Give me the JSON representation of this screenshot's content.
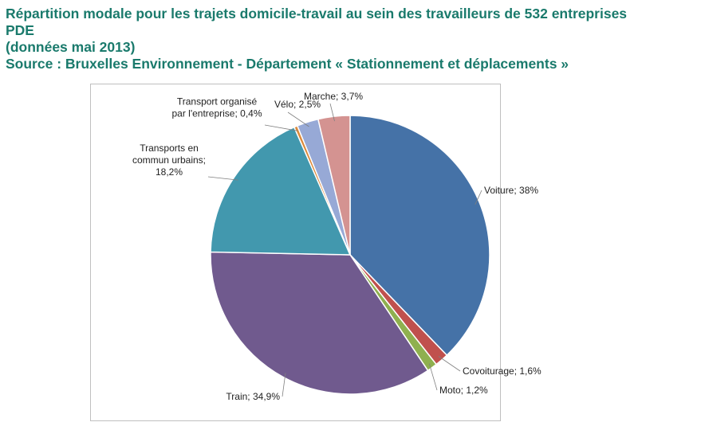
{
  "header": {
    "title_line1": "Répartition modale pour les trajets domicile-travail au sein des travailleurs de 532  entreprises",
    "title_line2": "PDE",
    "subtitle": "(données mai 2013)",
    "source": "Source : Bruxelles Environnement - Département « Stationnement et déplacements »"
  },
  "chart_data": {
    "type": "pie",
    "categories": [
      "Voiture",
      "Covoiturage",
      "Moto",
      "Train",
      "Transports en commun urbains",
      "Transport organisé par l'entreprise",
      "Vélo",
      "Marche"
    ],
    "values": [
      38,
      1.6,
      1.2,
      34.9,
      18.2,
      0.4,
      2.5,
      3.7
    ],
    "colors": [
      "#4572a7",
      "#c0504d",
      "#8fb04f",
      "#705a8e",
      "#4298ae",
      "#dc8a3b",
      "#97a9d6",
      "#d49391"
    ],
    "labels": [
      [
        "Voiture; 38%"
      ],
      [
        "Covoiturage; 1,6%"
      ],
      [
        "Moto; 1,2%"
      ],
      [
        "Train; 34,9%"
      ],
      [
        "Transports en",
        "commun urbains;",
        "18,2%"
      ],
      [
        "Transport organisé",
        "par l'entreprise; 0,4%"
      ],
      [
        "Vélo; 2,5%"
      ],
      [
        "Marche; 3,7%"
      ]
    ],
    "start_at": "top",
    "direction": "clockwise"
  }
}
